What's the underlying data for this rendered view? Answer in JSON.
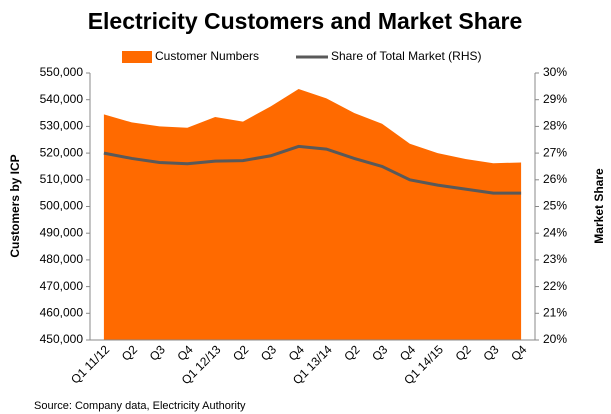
{
  "chart_data": {
    "type": "area-line",
    "title": "Electricity Customers and Market Share",
    "ylabel": "Customers by ICP",
    "y2label": "Market Share",
    "source": "Source: Company data, Electricity Authority",
    "categories": [
      "Q1 11/12",
      "Q2",
      "Q3",
      "Q4",
      "Q1 12/13",
      "Q2",
      "Q3",
      "Q4",
      "Q1 13/14",
      "Q2",
      "Q3",
      "Q4",
      "Q1 14/15",
      "Q2",
      "Q3",
      "Q4"
    ],
    "series": [
      {
        "name": "Customer Numbers",
        "color": "#ff6a00",
        "kind": "area",
        "values": [
          534500,
          531500,
          530000,
          529500,
          533500,
          531800,
          537500,
          544000,
          540500,
          535000,
          531000,
          523500,
          520000,
          517800,
          516200,
          516500
        ]
      },
      {
        "name": "Share of Total Market (RHS)",
        "color": "#595959",
        "kind": "line",
        "axis": "y2",
        "values": [
          27.0,
          26.8,
          26.65,
          26.6,
          26.7,
          26.72,
          26.9,
          27.25,
          27.15,
          26.8,
          26.5,
          26.0,
          25.8,
          25.65,
          25.5,
          25.5
        ]
      }
    ],
    "ylim": [
      450000,
      550000
    ],
    "yticks": [
      {
        "value": 450000,
        "label": "450,000"
      },
      {
        "value": 460000,
        "label": "460,000"
      },
      {
        "value": 470000,
        "label": "470,000"
      },
      {
        "value": 480000,
        "label": "480,000"
      },
      {
        "value": 490000,
        "label": "490,000"
      },
      {
        "value": 500000,
        "label": "500,000"
      },
      {
        "value": 510000,
        "label": "510,000"
      },
      {
        "value": 520000,
        "label": "520,000"
      },
      {
        "value": 530000,
        "label": "530,000"
      },
      {
        "value": 540000,
        "label": "540,000"
      },
      {
        "value": 550000,
        "label": "550,000"
      }
    ],
    "y2lim": [
      20,
      30
    ],
    "y2ticks": [
      {
        "value": 20,
        "label": "20%"
      },
      {
        "value": 21,
        "label": "21%"
      },
      {
        "value": 22,
        "label": "22%"
      },
      {
        "value": 23,
        "label": "23%"
      },
      {
        "value": 24,
        "label": "24%"
      },
      {
        "value": 25,
        "label": "25%"
      },
      {
        "value": 26,
        "label": "26%"
      },
      {
        "value": 27,
        "label": "27%"
      },
      {
        "value": 28,
        "label": "28%"
      },
      {
        "value": 29,
        "label": "29%"
      },
      {
        "value": 30,
        "label": "30%"
      }
    ],
    "legend": "top"
  }
}
